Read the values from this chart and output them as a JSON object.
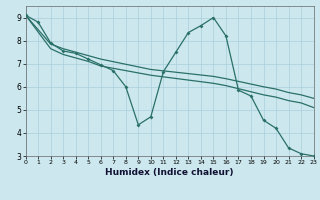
{
  "xlabel": "Humidex (Indice chaleur)",
  "bg_color": "#cce8ee",
  "grid_color": "#aacfda",
  "line_color": "#2a7068",
  "xlim": [
    0,
    23
  ],
  "ylim": [
    3,
    9.5
  ],
  "xtick_values": [
    0,
    1,
    2,
    3,
    4,
    5,
    6,
    7,
    8,
    9,
    10,
    11,
    12,
    13,
    14,
    15,
    16,
    17,
    18,
    19,
    20,
    21,
    22,
    23
  ],
  "ytick_values": [
    3,
    4,
    5,
    6,
    7,
    8,
    9
  ],
  "line_zigzag": {
    "x": [
      0,
      1,
      2,
      3,
      4,
      5,
      6,
      7,
      8,
      9,
      10,
      11,
      12,
      13,
      14,
      15,
      16,
      17,
      18,
      19,
      20,
      21,
      22,
      23
    ],
    "y": [
      9.1,
      8.8,
      7.9,
      7.55,
      7.45,
      7.2,
      6.95,
      6.7,
      6.0,
      4.35,
      4.7,
      6.65,
      7.5,
      8.35,
      8.65,
      9.0,
      8.2,
      5.85,
      5.6,
      4.55,
      4.2,
      3.35,
      3.1,
      3.0
    ]
  },
  "line_diag1": {
    "x": [
      0,
      2,
      3,
      4,
      5,
      6,
      10,
      15,
      16,
      19,
      20,
      21,
      22,
      23
    ],
    "y": [
      9.1,
      7.85,
      7.65,
      7.5,
      7.35,
      7.2,
      6.75,
      6.45,
      6.35,
      6.0,
      5.9,
      5.75,
      5.65,
      5.5
    ]
  },
  "line_diag2": {
    "x": [
      0,
      2,
      3,
      4,
      5,
      6,
      10,
      15,
      16,
      19,
      20,
      21,
      22,
      23
    ],
    "y": [
      9.1,
      7.65,
      7.4,
      7.25,
      7.1,
      6.9,
      6.5,
      6.15,
      6.05,
      5.65,
      5.55,
      5.4,
      5.3,
      5.1
    ]
  }
}
